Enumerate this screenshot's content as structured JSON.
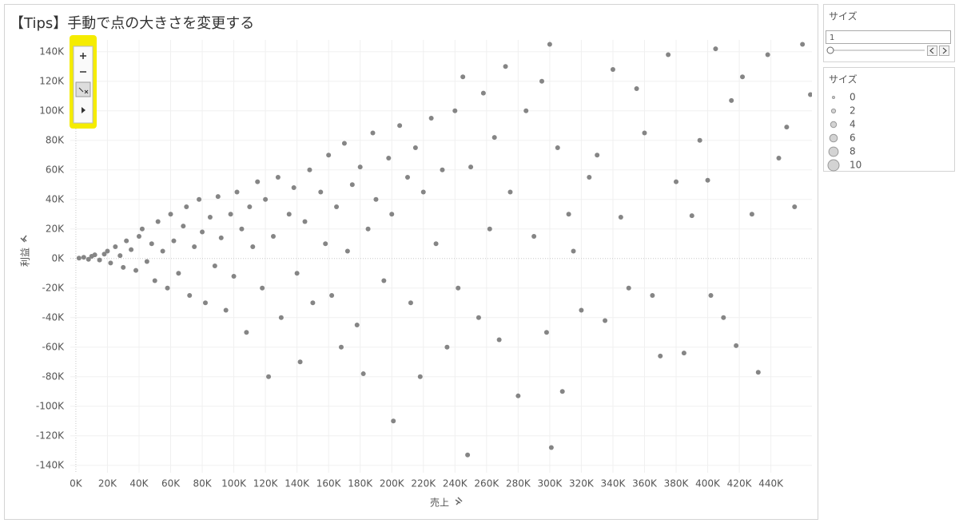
{
  "chart_data": {
    "type": "scatter",
    "title": "【Tips】手動で点の大きさを変更する",
    "x_label": "売上",
    "y_label": "利益",
    "color": "#858585",
    "grid": true,
    "xlim": [
      -3500,
      466000
    ],
    "ylim": [
      -145000,
      148000
    ],
    "xticks": [
      {
        "value": 0,
        "label": "0K"
      },
      {
        "value": 20000,
        "label": "20K"
      },
      {
        "value": 40000,
        "label": "40K"
      },
      {
        "value": 60000,
        "label": "60K"
      },
      {
        "value": 80000,
        "label": "80K"
      },
      {
        "value": 100000,
        "label": "100K"
      },
      {
        "value": 120000,
        "label": "120K"
      },
      {
        "value": 140000,
        "label": "140K"
      },
      {
        "value": 160000,
        "label": "160K"
      },
      {
        "value": 180000,
        "label": "180K"
      },
      {
        "value": 200000,
        "label": "200K"
      },
      {
        "value": 220000,
        "label": "220K"
      },
      {
        "value": 240000,
        "label": "240K"
      },
      {
        "value": 260000,
        "label": "260K"
      },
      {
        "value": 280000,
        "label": "280K"
      },
      {
        "value": 300000,
        "label": "300K"
      },
      {
        "value": 320000,
        "label": "320K"
      },
      {
        "value": 340000,
        "label": "340K"
      },
      {
        "value": 360000,
        "label": "360K"
      },
      {
        "value": 380000,
        "label": "380K"
      },
      {
        "value": 400000,
        "label": "400K"
      },
      {
        "value": 420000,
        "label": "420K"
      },
      {
        "value": 440000,
        "label": "440K"
      }
    ],
    "yticks": [
      {
        "value": -140000,
        "label": "-140K"
      },
      {
        "value": -120000,
        "label": "-120K"
      },
      {
        "value": -100000,
        "label": "-100K"
      },
      {
        "value": -80000,
        "label": "-80K"
      },
      {
        "value": -60000,
        "label": "-60K"
      },
      {
        "value": -40000,
        "label": "-40K"
      },
      {
        "value": -20000,
        "label": "-20K"
      },
      {
        "value": 0,
        "label": "0K"
      },
      {
        "value": 20000,
        "label": "20K"
      },
      {
        "value": 40000,
        "label": "40K"
      },
      {
        "value": 60000,
        "label": "60K"
      },
      {
        "value": 80000,
        "label": "80K"
      },
      {
        "value": 100000,
        "label": "100K"
      },
      {
        "value": 120000,
        "label": "120K"
      },
      {
        "value": 140000,
        "label": "140K"
      }
    ],
    "x": [
      2000,
      5000,
      8000,
      10000,
      12000,
      15000,
      18000,
      20000,
      22000,
      25000,
      28000,
      30000,
      32000,
      35000,
      38000,
      40000,
      42000,
      45000,
      48000,
      50000,
      52000,
      55000,
      58000,
      60000,
      62000,
      65000,
      68000,
      70000,
      72000,
      75000,
      78000,
      80000,
      82000,
      85000,
      88000,
      90000,
      92000,
      95000,
      98000,
      100000,
      102000,
      105000,
      108000,
      110000,
      112000,
      115000,
      118000,
      120000,
      122000,
      125000,
      128000,
      130000,
      135000,
      138000,
      140000,
      142000,
      145000,
      148000,
      150000,
      155000,
      158000,
      160000,
      162000,
      165000,
      168000,
      170000,
      172000,
      175000,
      178000,
      180000,
      182000,
      185000,
      188000,
      190000,
      195000,
      198000,
      200000,
      201000,
      205000,
      210000,
      212000,
      215000,
      218000,
      220000,
      225000,
      228000,
      232000,
      235000,
      240000,
      242000,
      245000,
      248000,
      250000,
      255000,
      258000,
      262000,
      265000,
      268000,
      272000,
      275000,
      280000,
      285000,
      290000,
      295000,
      298000,
      300000,
      301000,
      305000,
      308000,
      312000,
      315000,
      320000,
      325000,
      330000,
      335000,
      340000,
      345000,
      350000,
      355000,
      360000,
      365000,
      370000,
      375000,
      380000,
      385000,
      390000,
      395000,
      400000,
      402000,
      405000,
      410000,
      415000,
      418000,
      422000,
      428000,
      432000,
      438000,
      445000,
      450000,
      455000,
      460000,
      465000
    ],
    "values": [
      300,
      800,
      -500,
      1500,
      2500,
      -1000,
      3000,
      5000,
      -3000,
      8000,
      2000,
      -6000,
      12000,
      6000,
      -8000,
      15000,
      20000,
      -2000,
      10000,
      -15000,
      25000,
      5000,
      -20000,
      30000,
      12000,
      -10000,
      22000,
      35000,
      -25000,
      8000,
      40000,
      18000,
      -30000,
      28000,
      -5000,
      42000,
      14000,
      -35000,
      30000,
      -12000,
      45000,
      20000,
      -50000,
      35000,
      8000,
      52000,
      -20000,
      40000,
      -80000,
      15000,
      55000,
      -40000,
      30000,
      48000,
      -10000,
      -70000,
      25000,
      60000,
      -30000,
      45000,
      10000,
      70000,
      -25000,
      35000,
      -60000,
      78000,
      5000,
      50000,
      -45000,
      62000,
      -78000,
      20000,
      85000,
      40000,
      -15000,
      68000,
      30000,
      -110000,
      90000,
      55000,
      -30000,
      75000,
      -80000,
      45000,
      95000,
      10000,
      60000,
      -60000,
      100000,
      -20000,
      123000,
      -133000,
      62000,
      -40000,
      112000,
      20000,
      82000,
      -55000,
      130000,
      45000,
      -93000,
      100000,
      15000,
      120000,
      -50000,
      145000,
      -128000,
      75000,
      -90000,
      30000,
      5000,
      -35000,
      55000,
      70000,
      -42000,
      128000,
      28000,
      -20000,
      115000,
      85000,
      -25000,
      -66000,
      138000,
      52000,
      -64000,
      29000,
      80000,
      53000,
      -25000,
      142000,
      -40000,
      107000,
      -59000,
      123000,
      30000,
      -77000,
      138000,
      68000,
      89000,
      35000,
      145000,
      111000
    ]
  },
  "size_parameter": {
    "title": "サイズ",
    "value": 1
  },
  "size_legend": {
    "title": "サイズ",
    "values": [
      0,
      2,
      4,
      6,
      8,
      10
    ]
  }
}
